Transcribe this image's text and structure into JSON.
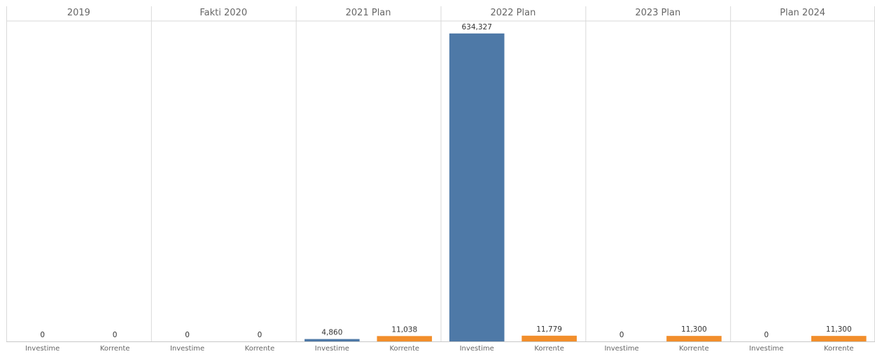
{
  "chart_data": {
    "type": "bar",
    "panels": [
      {
        "header": "2019",
        "values": [
          0,
          0
        ],
        "value_labels": [
          "0",
          "0"
        ]
      },
      {
        "header": "Fakti 2020",
        "values": [
          0,
          0
        ],
        "value_labels": [
          "0",
          "0"
        ]
      },
      {
        "header": "2021 Plan",
        "values": [
          4860,
          11038
        ],
        "value_labels": [
          "4,860",
          "11,038"
        ]
      },
      {
        "header": "2022 Plan",
        "values": [
          634327,
          11779
        ],
        "value_labels": [
          "634,327",
          "11,779"
        ]
      },
      {
        "header": "2023 Plan",
        "values": [
          0,
          11300
        ],
        "value_labels": [
          "0",
          "11,300"
        ]
      },
      {
        "header": "Plan 2024",
        "values": [
          0,
          11300
        ],
        "value_labels": [
          "0",
          "11,300"
        ]
      }
    ],
    "categories": [
      "Investime",
      "Korrente"
    ],
    "colors": {
      "Investime": "#4e79a7",
      "Korrente": "#f28e2b"
    },
    "ylim": [
      0,
      660000
    ],
    "grid": false
  }
}
